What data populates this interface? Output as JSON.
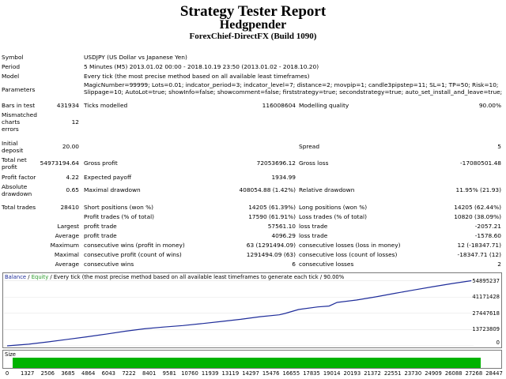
{
  "header": {
    "title": "Strategy Tester Report",
    "expert": "Hedgpender",
    "broker": "ForexChief-DirectFX (Build 1090)"
  },
  "info": {
    "symbol_label": "Symbol",
    "symbol_value": "USDJPY (US Dollar vs Japanese Yen)",
    "period_label": "Period",
    "period_value": "5 Minutes (M5) 2013.01.02 00:00 - 2018.10.19 23:50 (2013.01.02 - 2018.10.20)",
    "model_label": "Model",
    "model_value": "Every tick (the most precise method based on all available least timeframes)",
    "params_label": "Parameters",
    "params_line1": "MagicNumber=99999; Lots=0.01; indcator_period=3; indcator_level=7; distance=2; movpip=1; candle3pipstep=11; SL=1; TP=50; Risk=10;",
    "params_line2": "Slippage=10; AutoLot=true; showInfo=false; showcomment=false; firststrategy=true; secondstrategy=true; auto_set_install_and_leave=true;"
  },
  "stats": {
    "bars_label": "Bars in test",
    "bars_value": "431934",
    "ticks_label": "Ticks modelled",
    "ticks_value": "116008604",
    "quality_label": "Modelling quality",
    "quality_value": "90.00%",
    "mismatch_label_1": "Mismatched",
    "mismatch_label_2": "charts",
    "mismatch_label_3": "errors",
    "mismatch_value": "12",
    "deposit_label_1": "Initial",
    "deposit_label_2": "deposit",
    "deposit_value": "20.00",
    "spread_label": "Spread",
    "spread_value": "5",
    "netprofit_label_1": "Total net",
    "netprofit_label_2": "profit",
    "netprofit_value": "54973194.64",
    "grossprofit_label": "Gross profit",
    "grossprofit_value": "72053696.12",
    "grossloss_label": "Gross loss",
    "grossloss_value": "-17080501.48",
    "pf_label": "Profit factor",
    "pf_value": "4.22",
    "payoff_label": "Expected payoff",
    "payoff_value": "1934.99",
    "absdd_label_1": "Absolute",
    "absdd_label_2": "drawdown",
    "absdd_value": "0.65",
    "maxdd_label": "Maximal drawdown",
    "maxdd_value": "408054.88 (1.42%)",
    "reldd_label": "Relative drawdown",
    "reldd_value": "11.95% (21.93)",
    "trades_label": "Total trades",
    "trades_value": "28410",
    "short_label": "Short positions (won %)",
    "short_value": "14205 (61.39%)",
    "long_label": "Long positions (won %)",
    "long_value": "14205 (62.44%)",
    "ptrades_label": "Profit trades (% of total)",
    "ptrades_value": "17590 (61.91%)",
    "ltrades_label": "Loss trades (% of total)",
    "ltrades_value": "10820 (38.09%)",
    "largest_label": "Largest",
    "lpt_label": "profit trade",
    "lpt_value": "57561.10",
    "llt_label": "loss trade",
    "llt_value": "-2057.21",
    "average_label": "Average",
    "apt_label": "profit trade",
    "apt_value": "4096.29",
    "alt_label": "loss trade",
    "alt_value": "-1578.60",
    "maximum_label": "Maximum",
    "mcw_label": "consecutive wins (profit in money)",
    "mcw_value": "63 (1291494.09)",
    "mcl_label": "consecutive losses (loss in money)",
    "mcl_value": "12 (-18347.71)",
    "maximal_label": "Maximal",
    "mcp_label": "consecutive profit (count of wins)",
    "mcp_value": "1291494.09 (63)",
    "mcloss_label": "consecutive loss (count of losses)",
    "mcloss_value": "-18347.71 (12)",
    "average2_label": "Average",
    "acw_label": "consecutive wins",
    "acw_value": "6",
    "acl_label": "consecutive losses",
    "acl_value": "2"
  },
  "chart_data": {
    "type": "line",
    "legend_balance": "Balance",
    "legend_sep": " / ",
    "legend_equity": "Equity",
    "legend_rest": " / Every tick (the most precise method based on all available least timeframes to generate each tick / 90.00%",
    "size_label": "Size",
    "y_ticks": [
      "54895237",
      "41171428",
      "27447618",
      "13723809",
      "0"
    ],
    "y_tick_values": [
      54895237,
      41171428,
      27447618,
      13723809,
      0
    ],
    "x_ticks": [
      "0",
      "1327",
      "2506",
      "3685",
      "4864",
      "6043",
      "7222",
      "8401",
      "9581",
      "10760",
      "11939",
      "13119",
      "14297",
      "15476",
      "16655",
      "17835",
      "19014",
      "20193",
      "21372",
      "22551",
      "23730",
      "24909",
      "26088",
      "27268",
      "28447"
    ],
    "xlim": [
      0,
      28447
    ],
    "ylim": [
      0,
      58000000
    ],
    "series": [
      {
        "name": "Balance",
        "color": "#1f2d9a",
        "x": [
          0,
          1327,
          2506,
          3685,
          4864,
          6043,
          7222,
          8401,
          9581,
          10760,
          11939,
          13119,
          14297,
          15476,
          16655,
          17000,
          17835,
          19014,
          19700,
          20193,
          21372,
          22551,
          23730,
          24909,
          26088,
          27268,
          28410
        ],
        "values": [
          20,
          1400000,
          3300000,
          5500000,
          7600000,
          9900000,
          12300000,
          14400000,
          15900000,
          17100000,
          18800000,
          20600000,
          22400000,
          24600000,
          26200000,
          27300000,
          30700000,
          32900000,
          33600000,
          36700000,
          38700000,
          41300000,
          44300000,
          47200000,
          50000000,
          52700000,
          54973194
        ]
      }
    ]
  },
  "colors": {
    "balance": "#1f2d9a",
    "size_bar": "#00b300",
    "border": "#7a7a7a"
  }
}
